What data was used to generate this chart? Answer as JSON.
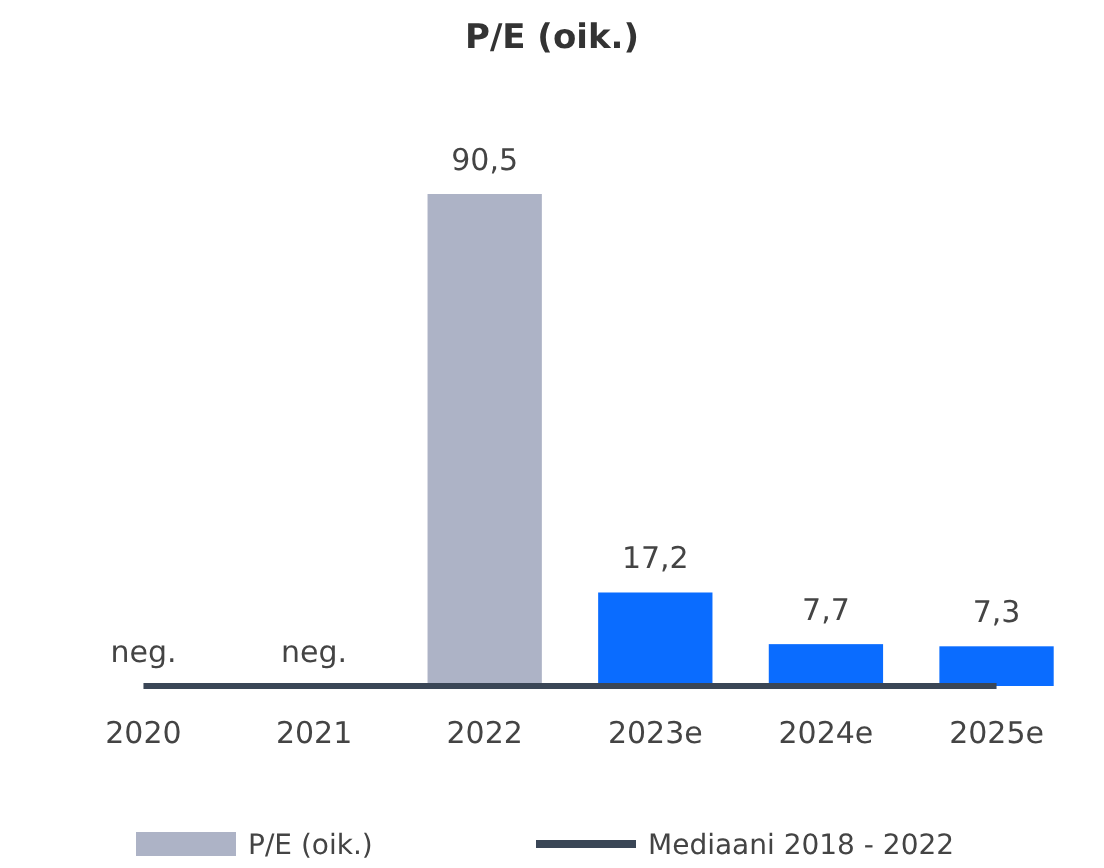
{
  "chart_data": {
    "type": "bar",
    "title": "P/E (oik.)",
    "categories": [
      "2020",
      "2021",
      "2022",
      "2023e",
      "2024e",
      "2025e"
    ],
    "series": [
      {
        "name": "P/E (oik.)",
        "color": "#adb3c6",
        "colors": [
          null,
          null,
          "#adb3c6",
          "#0a6cff",
          "#0a6cff",
          "#0a6cff"
        ],
        "values": [
          null,
          null,
          90.5,
          17.2,
          7.7,
          7.3
        ],
        "value_labels": [
          "neg.",
          "neg.",
          "90,5",
          "17,2",
          "7,7",
          "7,3"
        ]
      },
      {
        "type": "line",
        "name": "Mediaani 2018 - 2022",
        "color": "#3a4656",
        "values": [
          0,
          0,
          0,
          0,
          0,
          0
        ]
      }
    ],
    "legend": "bottom"
  }
}
